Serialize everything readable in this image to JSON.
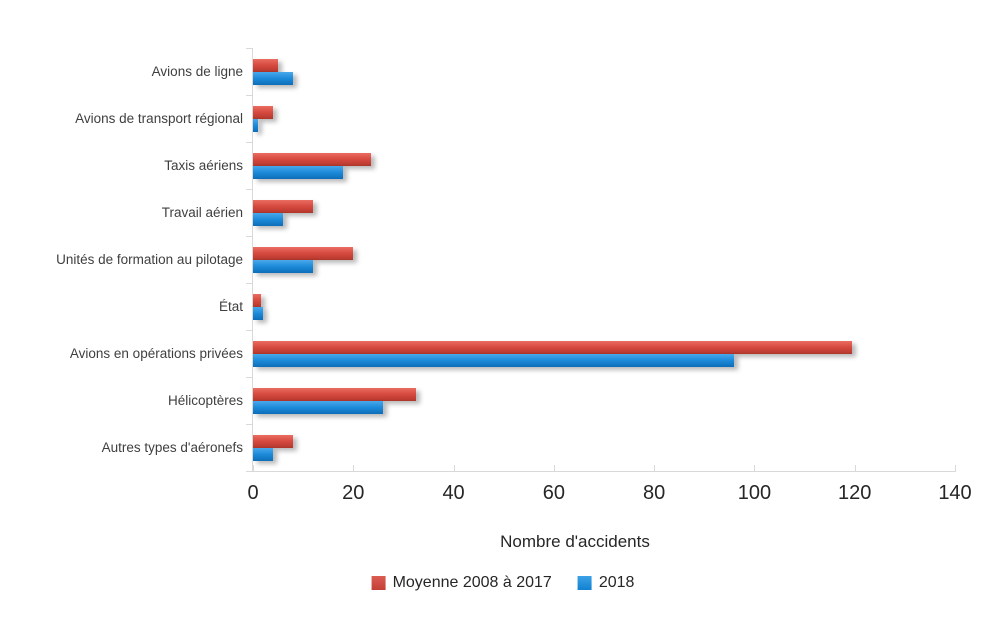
{
  "chart_data": {
    "type": "bar",
    "orientation": "horizontal",
    "title": "",
    "categories": [
      "Avions de ligne",
      "Avions de transport régional",
      "Taxis aériens",
      "Travail aérien",
      "Unités de formation au pilotage",
      "État",
      "Avions en opérations privées",
      "Hélicoptères",
      "Autres types d'aéronefs"
    ],
    "series": [
      {
        "name": "Moyenne 2008 à 2017",
        "color": "#d04a40",
        "values": [
          5,
          4,
          23.5,
          12,
          20,
          1.5,
          119.5,
          32.5,
          8
        ]
      },
      {
        "name": "2018",
        "color": "#1f93e0",
        "values": [
          8,
          1,
          18,
          6,
          12,
          2,
          96,
          26,
          4
        ]
      }
    ],
    "xlabel": "Nombre d'accidents",
    "xlim": [
      0,
      140
    ],
    "xticks": [
      0,
      20,
      40,
      60,
      80,
      100,
      120,
      140
    ],
    "grid": false,
    "legend_position": "bottom",
    "axis_color": "#d9d9d9",
    "text_color": "#3f3f3f"
  }
}
